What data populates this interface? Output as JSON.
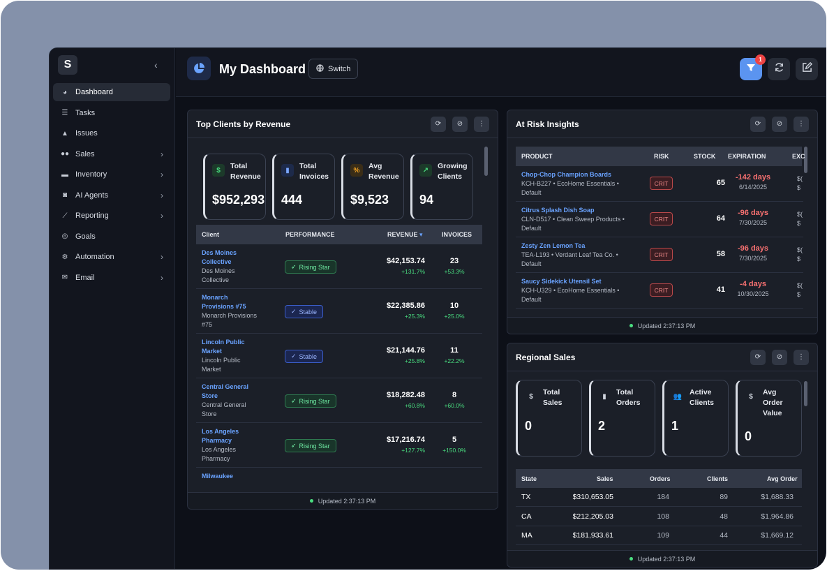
{
  "app": {
    "logo_letter": "S"
  },
  "sidebar": {
    "items": [
      {
        "label": "Dashboard",
        "icon": "pie-chart-icon",
        "active": true,
        "has_children": false
      },
      {
        "label": "Tasks",
        "icon": "tasks-icon",
        "has_children": false
      },
      {
        "label": "Issues",
        "icon": "warning-icon",
        "has_children": false
      },
      {
        "label": "Sales",
        "icon": "users-icon",
        "has_children": true
      },
      {
        "label": "Inventory",
        "icon": "box-icon",
        "has_children": true
      },
      {
        "label": "AI Agents",
        "icon": "robot-icon",
        "has_children": true
      },
      {
        "label": "Reporting",
        "icon": "chart-line-icon",
        "has_children": true
      },
      {
        "label": "Goals",
        "icon": "target-icon",
        "has_children": false
      },
      {
        "label": "Automation",
        "icon": "gears-icon",
        "has_children": true
      },
      {
        "label": "Email",
        "icon": "envelope-icon",
        "has_children": true
      }
    ]
  },
  "header": {
    "title": "My Dashboard",
    "switch_label": "Switch",
    "filter_badge": "1"
  },
  "top_clients": {
    "title": "Top Clients by Revenue",
    "kpis": [
      {
        "label1": "Total",
        "label2": "Revenue",
        "value": "$952,293",
        "icon": "$",
        "icon_color": "#4ade80",
        "icon_bg": "#1c3a2a"
      },
      {
        "label1": "Total",
        "label2": "Invoices",
        "value": "444",
        "icon": "▮",
        "icon_color": "#7aa7ff",
        "icon_bg": "#1d2a4a"
      },
      {
        "label1": "Avg",
        "label2": "Revenue",
        "value": "$9,523",
        "icon": "%",
        "icon_color": "#f5a524",
        "icon_bg": "#3a2d17"
      },
      {
        "label1": "Growing",
        "label2": "Clients",
        "value": "94",
        "icon": "↗",
        "icon_color": "#4ade80",
        "icon_bg": "#1c3a2a"
      }
    ],
    "columns": {
      "client": "Client",
      "performance": "PERFORMANCE",
      "revenue": "REVENUE",
      "invoices": "INVOICES"
    },
    "rows": [
      {
        "name_l1": "Des Moines",
        "name_l2": "Collective",
        "sub_l1": "Des Moines",
        "sub_l2": "Collective",
        "perf": "Rising Star",
        "perf_type": "rising",
        "revenue": "$42,153.74",
        "rev_growth": "+131.7%",
        "invoices": "23",
        "inv_growth": "+53.3%"
      },
      {
        "name_l1": "Monarch",
        "name_l2": "Provisions #75",
        "sub_l1": "Monarch Provisions",
        "sub_l2": "#75",
        "perf": "Stable",
        "perf_type": "stable",
        "revenue": "$22,385.86",
        "rev_growth": "+25.3%",
        "invoices": "10",
        "inv_growth": "+25.0%"
      },
      {
        "name_l1": "Lincoln Public",
        "name_l2": "Market",
        "sub_l1": "Lincoln Public",
        "sub_l2": "Market",
        "perf": "Stable",
        "perf_type": "stable",
        "revenue": "$21,144.76",
        "rev_growth": "+25.8%",
        "invoices": "11",
        "inv_growth": "+22.2%"
      },
      {
        "name_l1": "Central General",
        "name_l2": "Store",
        "sub_l1": "Central General",
        "sub_l2": "Store",
        "perf": "Rising Star",
        "perf_type": "rising",
        "revenue": "$18,282.48",
        "rev_growth": "+60.8%",
        "invoices": "8",
        "inv_growth": "+60.0%"
      },
      {
        "name_l1": "Los Angeles",
        "name_l2": "Pharmacy",
        "sub_l1": "Los Angeles",
        "sub_l2": "Pharmacy",
        "perf": "Rising Star",
        "perf_type": "rising",
        "revenue": "$17,216.74",
        "rev_growth": "+127.7%",
        "invoices": "5",
        "inv_growth": "+150.0%"
      },
      {
        "name_l1": "Milwaukee",
        "name_l2": "",
        "sub_l1": "",
        "sub_l2": "",
        "perf": "",
        "perf_type": "",
        "revenue": "",
        "rev_growth": "",
        "invoices": "",
        "inv_growth": ""
      }
    ],
    "updated": "Updated 2:37:13 PM"
  },
  "at_risk": {
    "title": "At Risk Insights",
    "columns": {
      "product": "PRODUCT",
      "risk": "RISK",
      "stock": "STOCK",
      "expiration": "EXPIRATION",
      "extra": "EXC"
    },
    "rows": [
      {
        "name": "Chop-Chop Champion Boards",
        "sub_l1": "KCH-B227 • EcoHome Essentials •",
        "sub_l2": "Default",
        "risk": "CRIT",
        "stock": "65",
        "days": "-142 days",
        "date": "6/14/2025",
        "extra1": "$(",
        "extra2": "$"
      },
      {
        "name": "Citrus Splash Dish Soap",
        "sub_l1": "CLN-D517 • Clean Sweep Products •",
        "sub_l2": "Default",
        "risk": "CRIT",
        "stock": "64",
        "days": "-96 days",
        "date": "7/30/2025",
        "extra1": "$(",
        "extra2": "$"
      },
      {
        "name": "Zesty Zen Lemon Tea",
        "sub_l1": "TEA-L193 • Verdant Leaf Tea Co. •",
        "sub_l2": "Default",
        "risk": "CRIT",
        "stock": "58",
        "days": "-96 days",
        "date": "7/30/2025",
        "extra1": "$(",
        "extra2": "$"
      },
      {
        "name": "Saucy Sidekick Utensil Set",
        "sub_l1": "KCH-U329 • EcoHome Essentials •",
        "sub_l2": "Default",
        "risk": "CRIT",
        "stock": "41",
        "days": "-4 days",
        "date": "10/30/2025",
        "extra1": "$(",
        "extra2": "$"
      }
    ],
    "updated": "Updated 2:37:13 PM"
  },
  "regional": {
    "title": "Regional Sales",
    "kpis": [
      {
        "label1": "Total",
        "label2": "Sales",
        "label3": "",
        "value": "0",
        "icon": "$"
      },
      {
        "label1": "Total",
        "label2": "Orders",
        "label3": "",
        "value": "2",
        "icon": "▮"
      },
      {
        "label1": "Active",
        "label2": "Clients",
        "label3": "",
        "value": "1",
        "icon": "👥"
      },
      {
        "label1": "Avg",
        "label2": "Order",
        "label3": "Value",
        "value": "0",
        "icon": "$"
      }
    ],
    "columns": {
      "state": "State",
      "sales": "Sales",
      "orders": "Orders",
      "clients": "Clients",
      "avg_order": "Avg Order"
    },
    "rows": [
      {
        "state": "TX",
        "sales": "$310,653.05",
        "orders": "184",
        "clients": "89",
        "avg_order": "$1,688.33"
      },
      {
        "state": "CA",
        "sales": "$212,205.03",
        "orders": "108",
        "clients": "48",
        "avg_order": "$1,964.86"
      },
      {
        "state": "MA",
        "sales": "$181,933.61",
        "orders": "109",
        "clients": "44",
        "avg_order": "$1,669.12"
      }
    ],
    "updated": "Updated 2:37:13 PM"
  }
}
